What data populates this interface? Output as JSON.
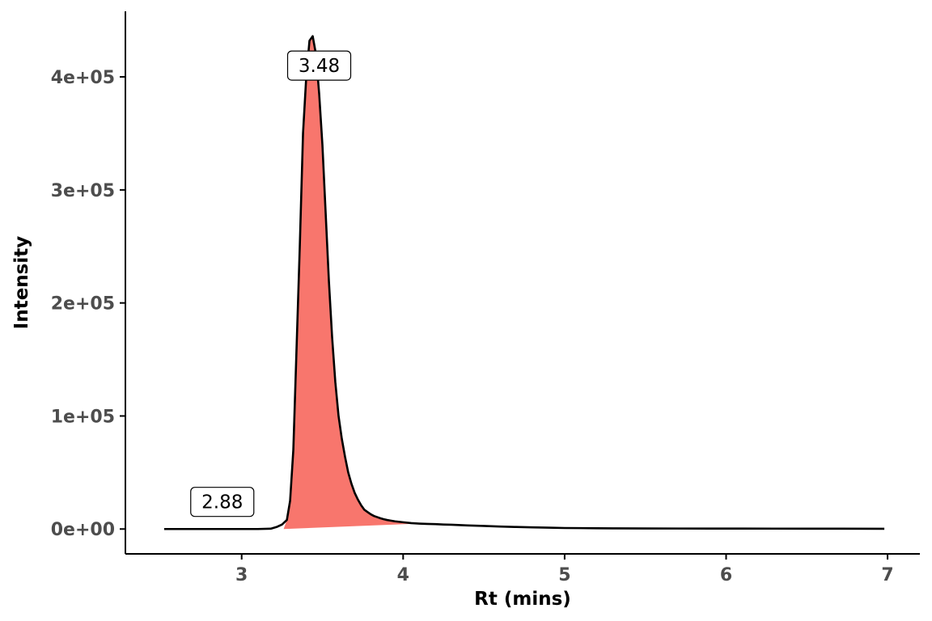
{
  "chart_data": {
    "type": "area",
    "title": "",
    "xlabel": "Rt (mins)",
    "ylabel": "Intensity",
    "xlim": [
      2.28,
      7.2
    ],
    "ylim": [
      -22000,
      458000
    ],
    "x_ticks": [
      3,
      4,
      5,
      6,
      7
    ],
    "x_tick_labels": [
      "3",
      "4",
      "5",
      "6",
      "7"
    ],
    "y_ticks": [
      0,
      100000,
      200000,
      300000,
      400000
    ],
    "y_tick_labels": [
      "0e+00",
      "1e+05",
      "2e+05",
      "3e+05",
      "4e+05"
    ],
    "grid": false,
    "legend": "none",
    "colors": {
      "line": "#000000",
      "fill": "#f8766d",
      "axis": "#000000",
      "tick_text": "#4d4d4d"
    },
    "series": [
      {
        "x": [
          2.52,
          2.7,
          2.9,
          3.1,
          3.18,
          3.22,
          3.25,
          3.28,
          3.3,
          3.32,
          3.34,
          3.36,
          3.38,
          3.4,
          3.42,
          3.44,
          3.46,
          3.48,
          3.5,
          3.52,
          3.54,
          3.56,
          3.58,
          3.6,
          3.62,
          3.64,
          3.66,
          3.68,
          3.7,
          3.72,
          3.74,
          3.76,
          3.78,
          3.8,
          3.82,
          3.84,
          3.86,
          3.88,
          3.9,
          3.92,
          3.95,
          4.0,
          4.05,
          4.1,
          4.15,
          4.2,
          4.25,
          4.3,
          4.4,
          4.5,
          4.6,
          4.7,
          4.8,
          4.9,
          5.0,
          5.1,
          5.2,
          5.3,
          5.5,
          5.7,
          5.9,
          6.1,
          6.3,
          6.5,
          6.7,
          6.98
        ],
        "y": [
          0,
          0,
          0,
          0,
          300,
          2000,
          4000,
          8000,
          25000,
          70000,
          160000,
          250000,
          350000,
          400000,
          432000,
          436000,
          420000,
          385000,
          340000,
          280000,
          220000,
          170000,
          130000,
          100000,
          80000,
          64000,
          50000,
          40000,
          32000,
          26000,
          21000,
          17000,
          15000,
          13000,
          11500,
          10500,
          9500,
          8700,
          8000,
          7500,
          6800,
          6000,
          5200,
          4800,
          4500,
          4300,
          4000,
          3800,
          3200,
          2700,
          2200,
          1800,
          1500,
          1200,
          900,
          800,
          700,
          600,
          500,
          450,
          400,
          380,
          350,
          320,
          300,
          250
        ]
      }
    ],
    "shaded_peak": {
      "x_start": 3.26,
      "x_end": 4.1,
      "baseline_start": 0,
      "baseline_end": 4800
    },
    "annotations": [
      {
        "text": "3.48",
        "x": 3.48,
        "y": 410000
      },
      {
        "text": "2.88",
        "x": 2.88,
        "y": 24000
      }
    ]
  }
}
